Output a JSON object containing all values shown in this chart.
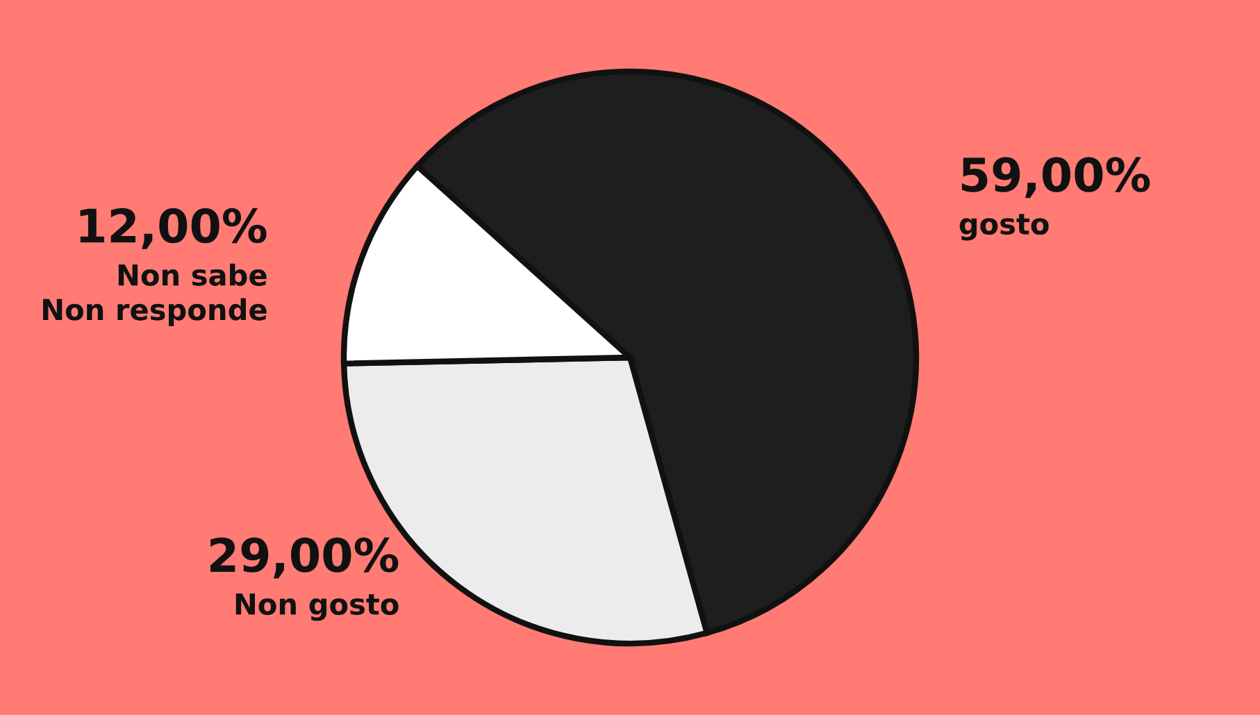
{
  "chart_data": {
    "type": "pie",
    "categories": [
      "gosto",
      "Non gosto",
      "Non sabe\nNon responde"
    ],
    "values": [
      59,
      29,
      12
    ],
    "value_labels": [
      "59,00%",
      "29,00%",
      "12,00%"
    ],
    "colors": [
      "#1e1e1e",
      "#ececec",
      "#ffffff"
    ],
    "legend": false
  }
}
